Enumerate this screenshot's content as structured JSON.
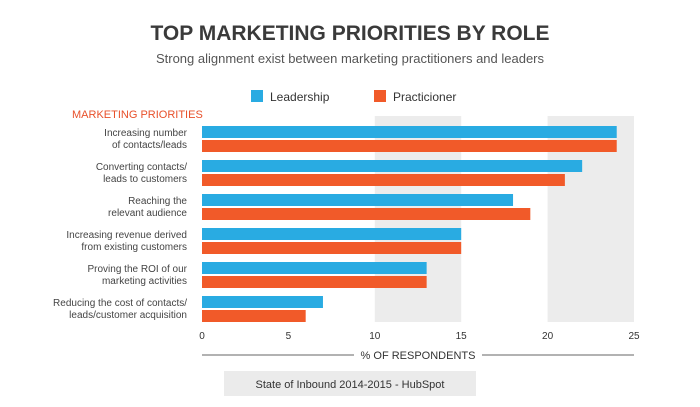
{
  "chart_data": {
    "type": "bar",
    "orientation": "horizontal",
    "title": "TOP MARKETING PRIORITIES BY ROLE",
    "subtitle": "Strong alignment exist between marketing practitioners and leaders",
    "ylabel": "MARKETING PRIORITIES",
    "xlabel": "% OF RESPONDENTS",
    "categories": [
      [
        "Increasing number",
        "of contacts/leads"
      ],
      [
        "Converting contacts/",
        "leads to customers"
      ],
      [
        "Reaching the",
        "relevant audience"
      ],
      [
        "Increasing revenue derived",
        "from existing customers"
      ],
      [
        "Proving the ROI of our",
        "marketing activities"
      ],
      [
        "Reducing the cost of contacts/",
        "leads/customer acquisition"
      ]
    ],
    "series": [
      {
        "name": "Leadership",
        "color": "#29abe2",
        "values": [
          24,
          22,
          18,
          15,
          13,
          7
        ]
      },
      {
        "name": "Practicioner",
        "color": "#f15a29",
        "values": [
          24,
          21,
          19,
          15,
          13,
          6
        ]
      }
    ],
    "xlim": [
      0,
      25
    ],
    "xticks": [
      "0",
      "5",
      "10",
      "15",
      "20",
      "25"
    ],
    "legend_position": "top",
    "grid": "alternating vertical bands",
    "source": "State of Inbound 2014-2015 - HubSpot"
  }
}
